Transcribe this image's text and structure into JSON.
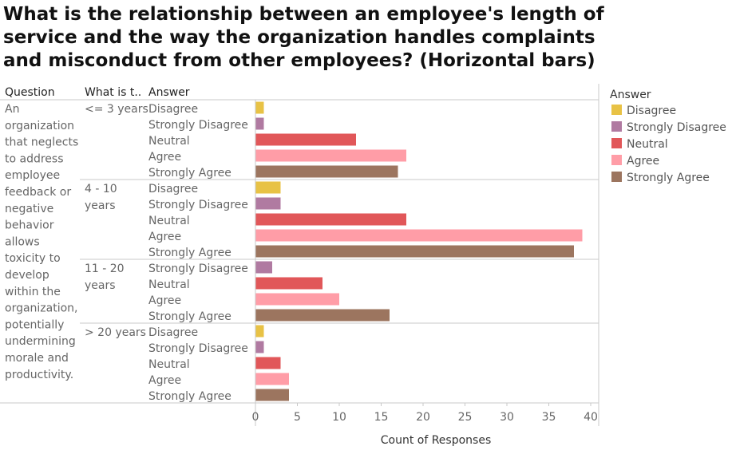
{
  "chart_data": {
    "type": "bar",
    "orientation": "horizontal",
    "title": "What is the relationship between an employee's length of service and the way the organization handles complaints and misconduct from other employees? (Horizontal bars)",
    "column_headers": [
      "Question",
      "What is t..",
      "Answer"
    ],
    "question": [
      "An",
      "organization",
      "that neglects",
      "to address",
      "employee",
      "feedback or",
      "negative",
      "behavior",
      "allows",
      "toxicity to",
      "develop",
      "within the",
      "organization,",
      "potentially",
      "undermining",
      "morale and",
      "productivity."
    ],
    "xlabel": "Count of Responses",
    "xlim": [
      0,
      40
    ],
    "xticks": [
      0,
      5,
      10,
      15,
      20,
      25,
      30,
      35,
      40
    ],
    "gridlines": false,
    "groups": [
      {
        "label": [
          "<= 3 years"
        ],
        "bars": [
          {
            "answer": "Disagree",
            "value": 1
          },
          {
            "answer": "Strongly Disagree",
            "value": 1
          },
          {
            "answer": "Neutral",
            "value": 12
          },
          {
            "answer": "Agree",
            "value": 18
          },
          {
            "answer": "Strongly Agree",
            "value": 17
          }
        ]
      },
      {
        "label": [
          "4 - 10",
          "years"
        ],
        "bars": [
          {
            "answer": "Disagree",
            "value": 3
          },
          {
            "answer": "Strongly Disagree",
            "value": 3
          },
          {
            "answer": "Neutral",
            "value": 18
          },
          {
            "answer": "Agree",
            "value": 39
          },
          {
            "answer": "Strongly Agree",
            "value": 38
          }
        ]
      },
      {
        "label": [
          "11 - 20",
          "years"
        ],
        "bars": [
          {
            "answer": "Strongly Disagree",
            "value": 2
          },
          {
            "answer": "Neutral",
            "value": 8
          },
          {
            "answer": "Agree",
            "value": 10
          },
          {
            "answer": "Strongly Agree",
            "value": 16
          }
        ]
      },
      {
        "label": [
          "> 20 years"
        ],
        "bars": [
          {
            "answer": "Disagree",
            "value": 1
          },
          {
            "answer": "Strongly Disagree",
            "value": 1
          },
          {
            "answer": "Neutral",
            "value": 3
          },
          {
            "answer": "Agree",
            "value": 4
          },
          {
            "answer": "Strongly Agree",
            "value": 4
          }
        ]
      }
    ],
    "legend": {
      "title": "Answer",
      "position": "right",
      "items": [
        {
          "label": "Disagree",
          "color": "#e8c245"
        },
        {
          "label": "Strongly Disagree",
          "color": "#b07aa1"
        },
        {
          "label": "Neutral",
          "color": "#e15759"
        },
        {
          "label": "Agree",
          "color": "#ff9da7"
        },
        {
          "label": "Strongly Agree",
          "color": "#9c755f"
        }
      ]
    }
  }
}
